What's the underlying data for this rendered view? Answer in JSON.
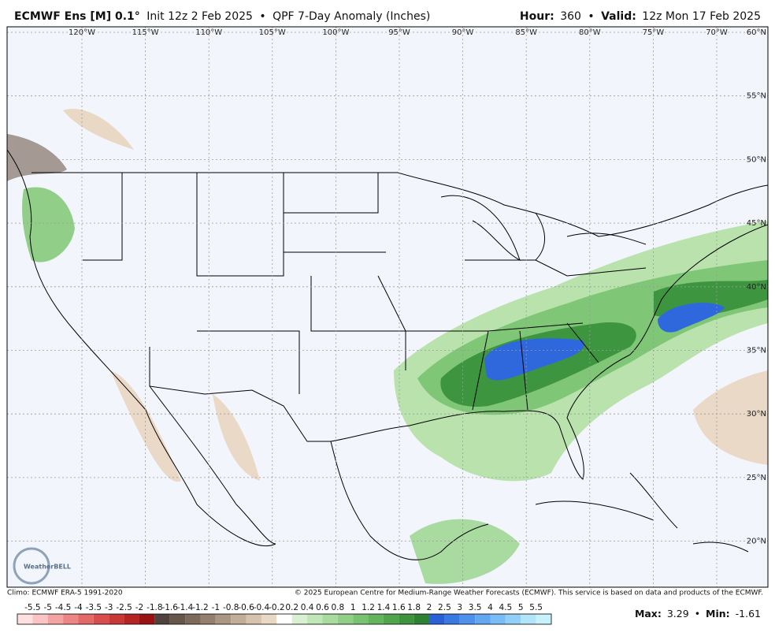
{
  "header": {
    "model": "ECMWF Ens [M] 0.1°",
    "init": "Init 12z 2 Feb 2025",
    "product": "QPF 7-Day Anomaly (Inches)",
    "separator": "•",
    "hour_label": "Hour:",
    "hour": "360",
    "valid_label": "Valid:",
    "valid": "12z Mon 17 Feb 2025"
  },
  "map": {
    "lon_labels": [
      "120°W",
      "115°W",
      "110°W",
      "105°W",
      "100°W",
      "95°W",
      "90°W",
      "85°W",
      "80°W",
      "75°W",
      "70°W"
    ],
    "lat_labels": [
      "60°N",
      "55°N",
      "50°N",
      "45°N",
      "40°N",
      "35°N",
      "30°N",
      "25°N",
      "20°N"
    ],
    "logo": "WeatherBELL"
  },
  "footer": {
    "climo": "Climo: ECMWF ERA-5 1991-2020",
    "copyright": "© 2025 European Centre for Medium-Range Weather Forecasts (ECMWF). This service is based on data and products of the ECMWF."
  },
  "colorbar": {
    "ticks": [
      -5.5,
      -5,
      -4.5,
      -4,
      -3.5,
      -3,
      -2.5,
      -2,
      -1.8,
      -1.6,
      -1.4,
      -1.2,
      -1,
      -0.8,
      -0.6,
      -0.4,
      -0.2,
      0.2,
      0.4,
      0.6,
      0.8,
      1,
      1.2,
      1.4,
      1.6,
      1.8,
      2,
      2.5,
      3,
      3.5,
      4,
      4.5,
      5,
      5.5
    ],
    "colors": [
      "#ffe0e0",
      "#fbc4c4",
      "#f4a3a3",
      "#ec8585",
      "#e36868",
      "#d84d4d",
      "#c93737",
      "#b42424",
      "#981414",
      "#4f423c",
      "#66564c",
      "#7c6b5d",
      "#937f6f",
      "#aa9683",
      "#c1ad98",
      "#d6c3ad",
      "#e9d8c4",
      "#ffffff",
      "#d9f0d1",
      "#c1e6b7",
      "#a9da9f",
      "#91cf88",
      "#79c271",
      "#63b45d",
      "#4fa44c",
      "#3e933f",
      "#2e8134",
      "#2a5fd6",
      "#3a78e2",
      "#4e90eb",
      "#63a7f1",
      "#7abcf5",
      "#92d0f8",
      "#b2e4fa",
      "#c8f2fb"
    ]
  },
  "stats": {
    "max_label": "Max:",
    "max": 3.29,
    "separator": "•",
    "min_label": "Min:",
    "min": -1.61
  }
}
